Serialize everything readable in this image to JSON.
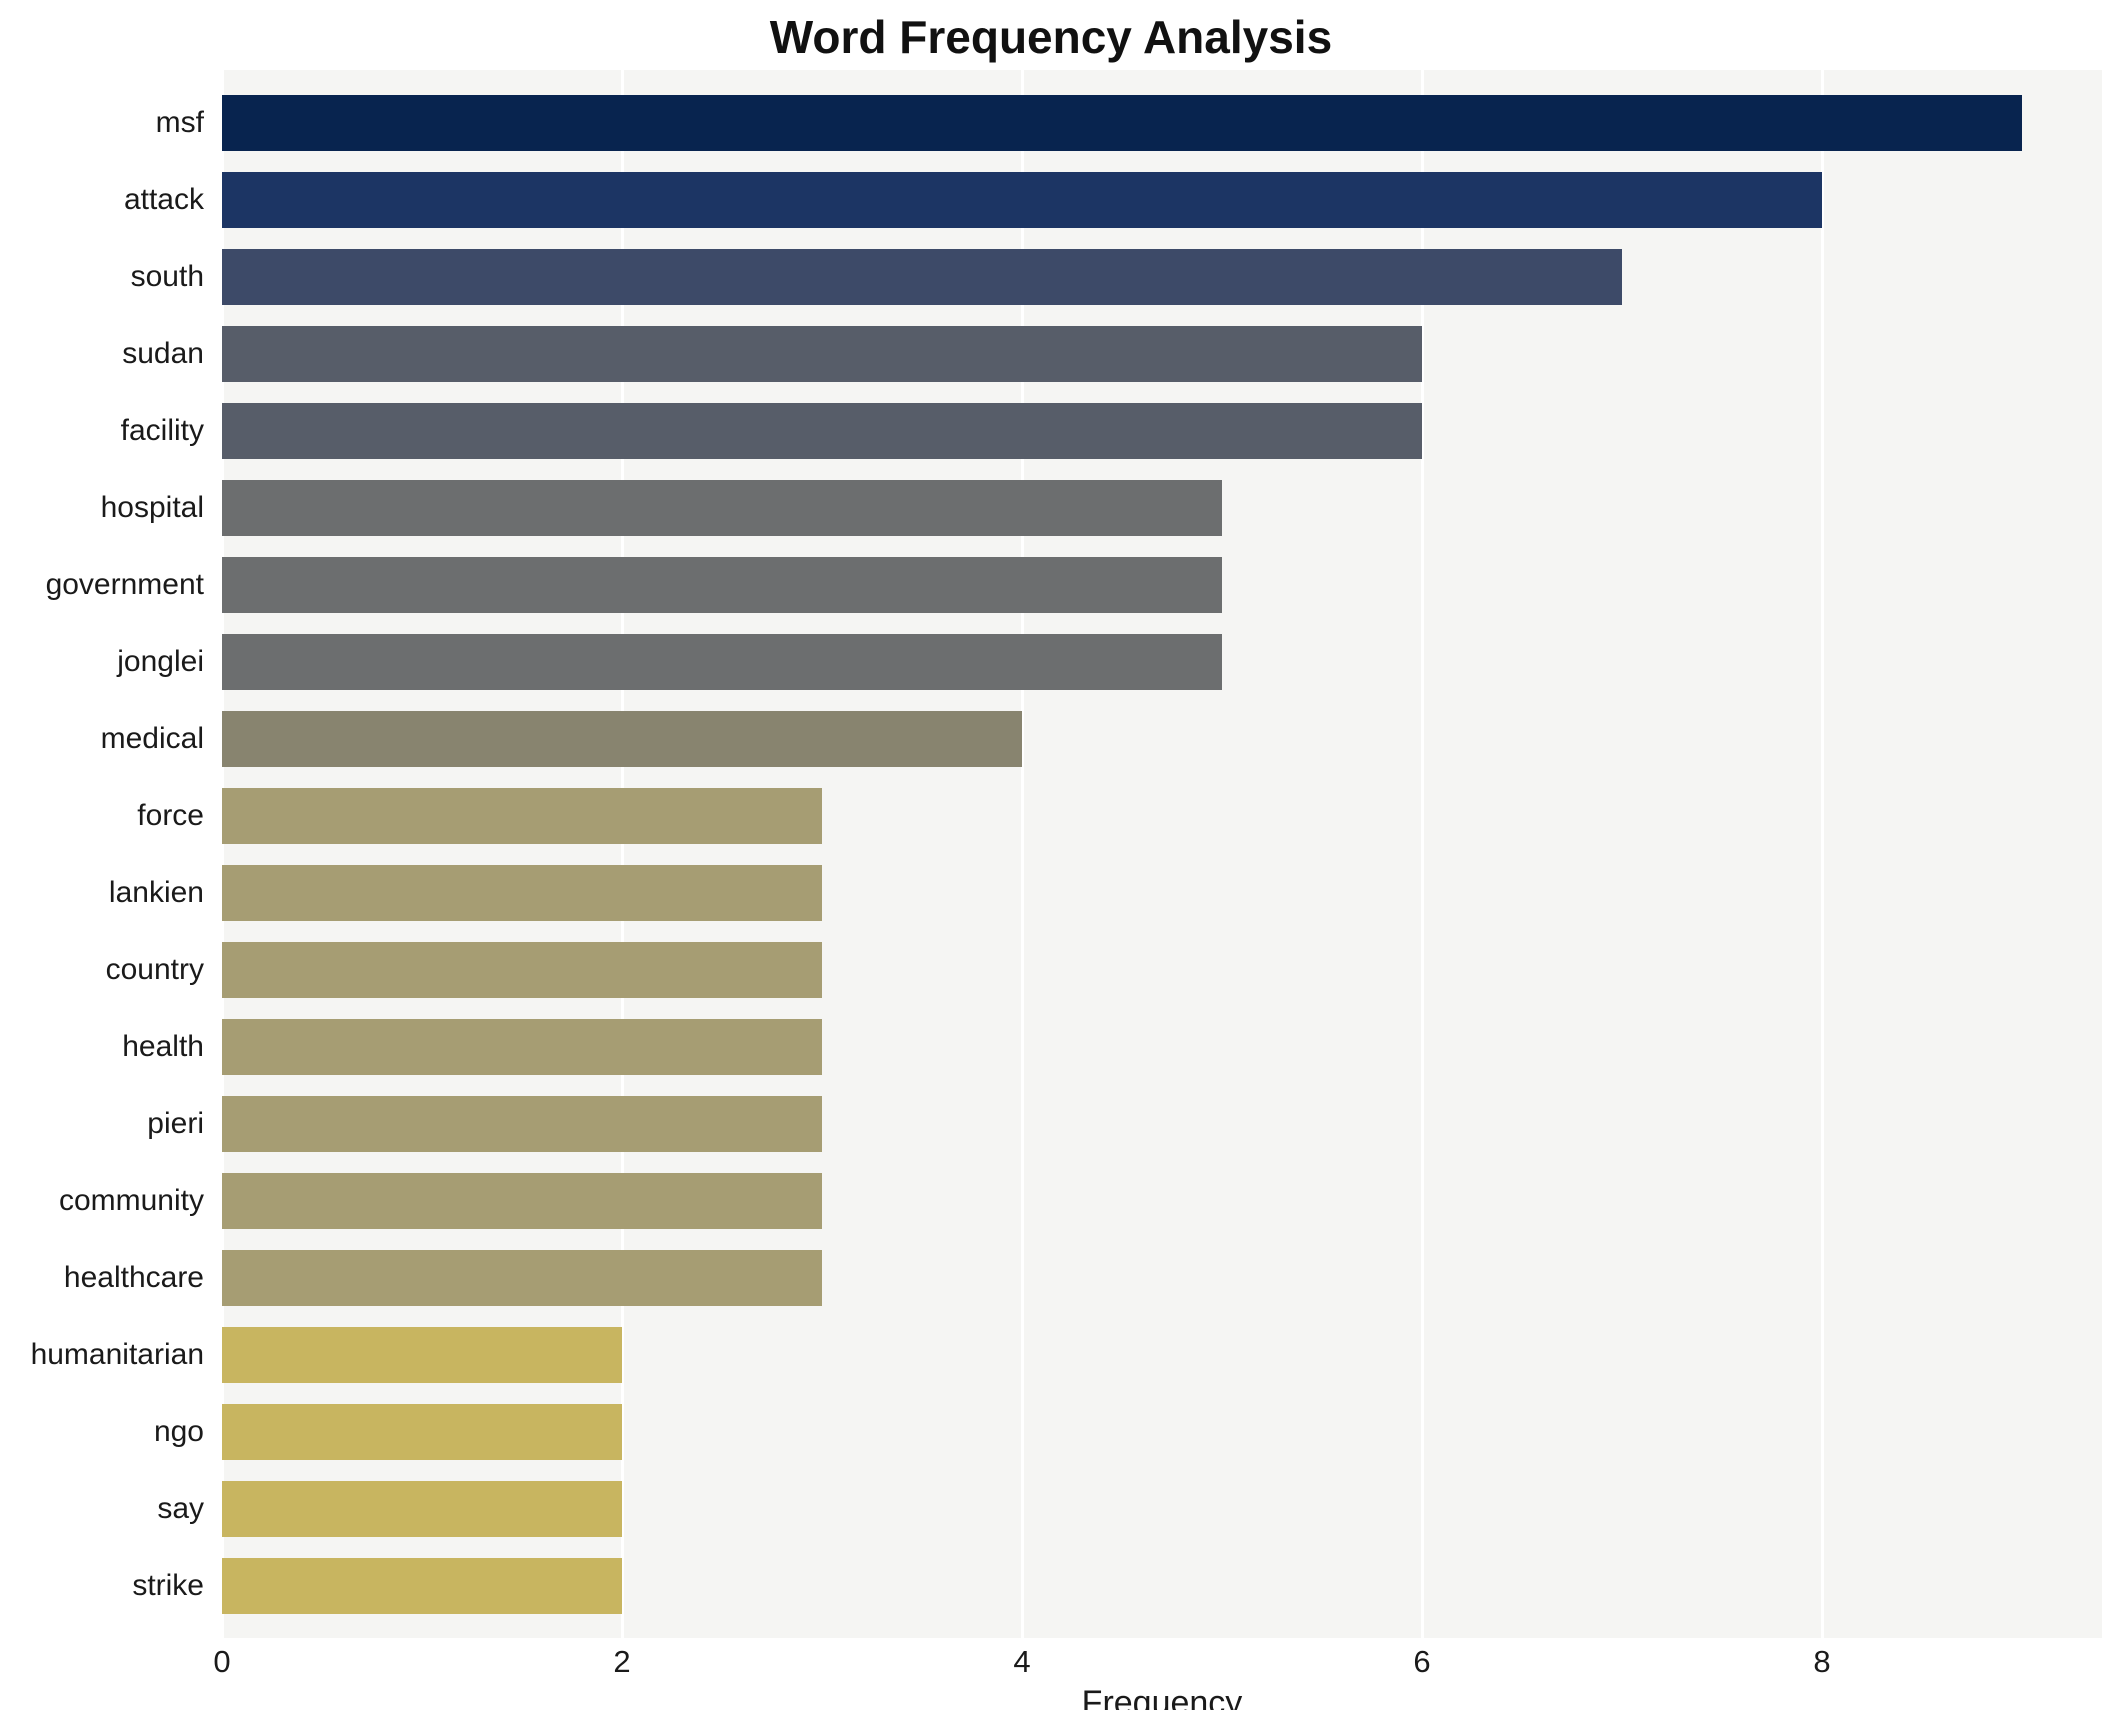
{
  "chart_data": {
    "type": "bar",
    "orientation": "horizontal",
    "title": "Word Frequency Analysis",
    "xlabel": "Frequency",
    "ylabel": "",
    "categories": [
      "msf",
      "attack",
      "south",
      "sudan",
      "facility",
      "hospital",
      "government",
      "jonglei",
      "medical",
      "force",
      "lankien",
      "country",
      "health",
      "pieri",
      "community",
      "healthcare",
      "humanitarian",
      "ngo",
      "say",
      "strike"
    ],
    "values": [
      9,
      8,
      7,
      6,
      6,
      5,
      5,
      5,
      4,
      3,
      3,
      3,
      3,
      3,
      3,
      3,
      2,
      2,
      2,
      2
    ],
    "bar_colors": [
      "#08244f",
      "#1c3564",
      "#3d4a68",
      "#575d69",
      "#575d69",
      "#6c6e6f",
      "#6c6e6f",
      "#6c6e6f",
      "#88846f",
      "#a69d73",
      "#a69d73",
      "#a69d73",
      "#a69d73",
      "#a69d73",
      "#a69d73",
      "#a69d73",
      "#c8b560",
      "#c8b560",
      "#c8b560",
      "#c8b560"
    ],
    "xticks": [
      0,
      2,
      4,
      6,
      8
    ],
    "xlim": [
      0,
      9.4
    ],
    "grid": true,
    "legend": "none",
    "plot_background": "#f5f5f3",
    "grid_color": "#ffffff"
  }
}
